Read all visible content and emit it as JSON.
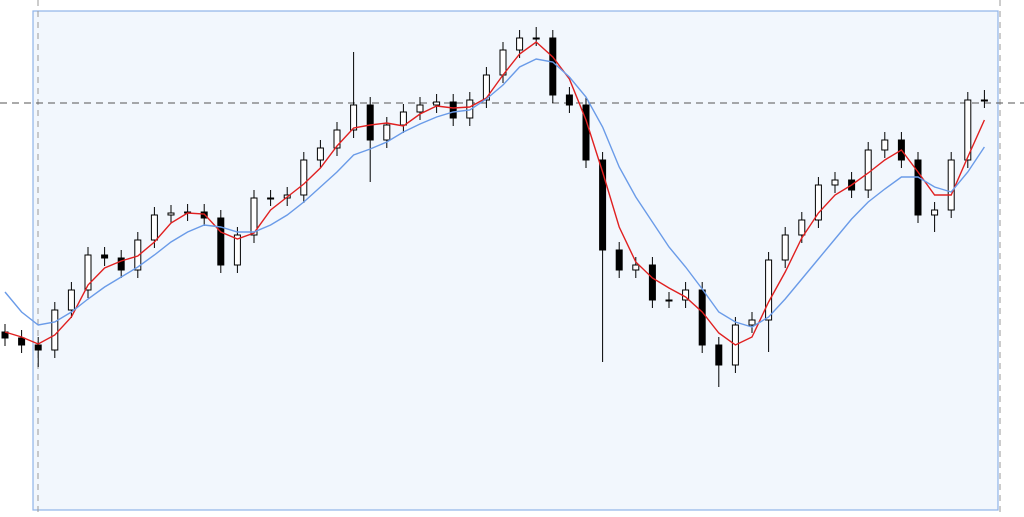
{
  "chart_data": {
    "type": "candlestick",
    "ylim": [
      0,
      517
    ],
    "up_color": "#ffffff",
    "down_color": "#000000",
    "open": [
      185,
      179,
      172,
      167,
      207,
      227,
      262,
      259,
      247,
      277,
      302,
      304,
      305,
      299,
      252,
      282,
      319,
      319,
      322,
      357,
      369,
      387,
      412,
      377,
      392,
      405,
      412,
      415,
      399,
      417,
      442,
      467,
      479,
      479,
      422,
      412,
      357,
      267,
      247,
      252,
      217,
      217,
      227,
      172,
      152,
      192,
      197,
      257,
      282,
      297,
      332,
      337,
      327,
      367,
      377,
      357,
      302,
      307,
      357,
      417
    ],
    "high": [
      193,
      187,
      180,
      215,
      235,
      270,
      270,
      267,
      285,
      310,
      312,
      313,
      313,
      307,
      290,
      327,
      327,
      330,
      365,
      377,
      395,
      465,
      420,
      400,
      413,
      420,
      423,
      423,
      425,
      450,
      475,
      487,
      490,
      487,
      430,
      420,
      365,
      275,
      260,
      260,
      225,
      235,
      235,
      180,
      200,
      205,
      265,
      290,
      305,
      340,
      345,
      345,
      375,
      385,
      385,
      365,
      315,
      365,
      425,
      427
    ],
    "low": [
      171,
      164,
      150,
      159,
      199,
      219,
      251,
      239,
      239,
      269,
      294,
      296,
      291,
      244,
      244,
      274,
      311,
      311,
      314,
      349,
      361,
      379,
      335,
      369,
      384,
      397,
      404,
      391,
      391,
      409,
      434,
      459,
      471,
      414,
      404,
      349,
      155,
      239,
      239,
      209,
      209,
      209,
      164,
      130,
      144,
      184,
      165,
      249,
      274,
      289,
      324,
      319,
      319,
      359,
      349,
      294,
      285,
      299,
      349,
      409
    ],
    "close": [
      179,
      172,
      167,
      207,
      227,
      262,
      259,
      247,
      277,
      302,
      304,
      305,
      299,
      252,
      282,
      319,
      319,
      322,
      357,
      369,
      387,
      412,
      377,
      392,
      405,
      412,
      415,
      399,
      417,
      442,
      467,
      479,
      479,
      422,
      412,
      357,
      267,
      247,
      252,
      217,
      217,
      227,
      172,
      152,
      192,
      197,
      257,
      282,
      297,
      332,
      337,
      327,
      367,
      377,
      357,
      302,
      307,
      357,
      417,
      417
    ],
    "series": [
      {
        "color": "#e02020",
        "values": [
          185,
          180,
          173,
          182,
          200,
          232,
          249,
          256,
          261,
          275,
          294,
          304,
          303,
          285,
          278,
          284,
          307,
          320,
          333,
          349,
          371,
          389,
          392,
          394,
          391,
          403,
          411,
          409,
          410,
          419,
          442,
          463,
          475,
          460,
          438,
          397,
          345,
          290,
          255,
          239,
          229,
          220,
          205,
          184,
          172,
          180,
          215,
          245,
          279,
          304,
          322,
          332,
          344,
          357,
          367,
          345,
          322,
          322,
          360,
          397
        ]
      },
      {
        "color": "#6a9be8",
        "values": [
          225,
          205,
          192,
          195,
          205,
          218,
          230,
          240,
          250,
          262,
          275,
          285,
          292,
          290,
          285,
          285,
          292,
          302,
          315,
          330,
          345,
          362,
          368,
          375,
          385,
          393,
          400,
          405,
          407,
          418,
          432,
          450,
          458,
          455,
          440,
          420,
          390,
          350,
          320,
          295,
          270,
          250,
          228,
          205,
          195,
          190,
          200,
          218,
          238,
          258,
          278,
          298,
          315,
          328,
          340,
          340,
          330,
          325,
          345,
          370
        ]
      }
    ]
  }
}
